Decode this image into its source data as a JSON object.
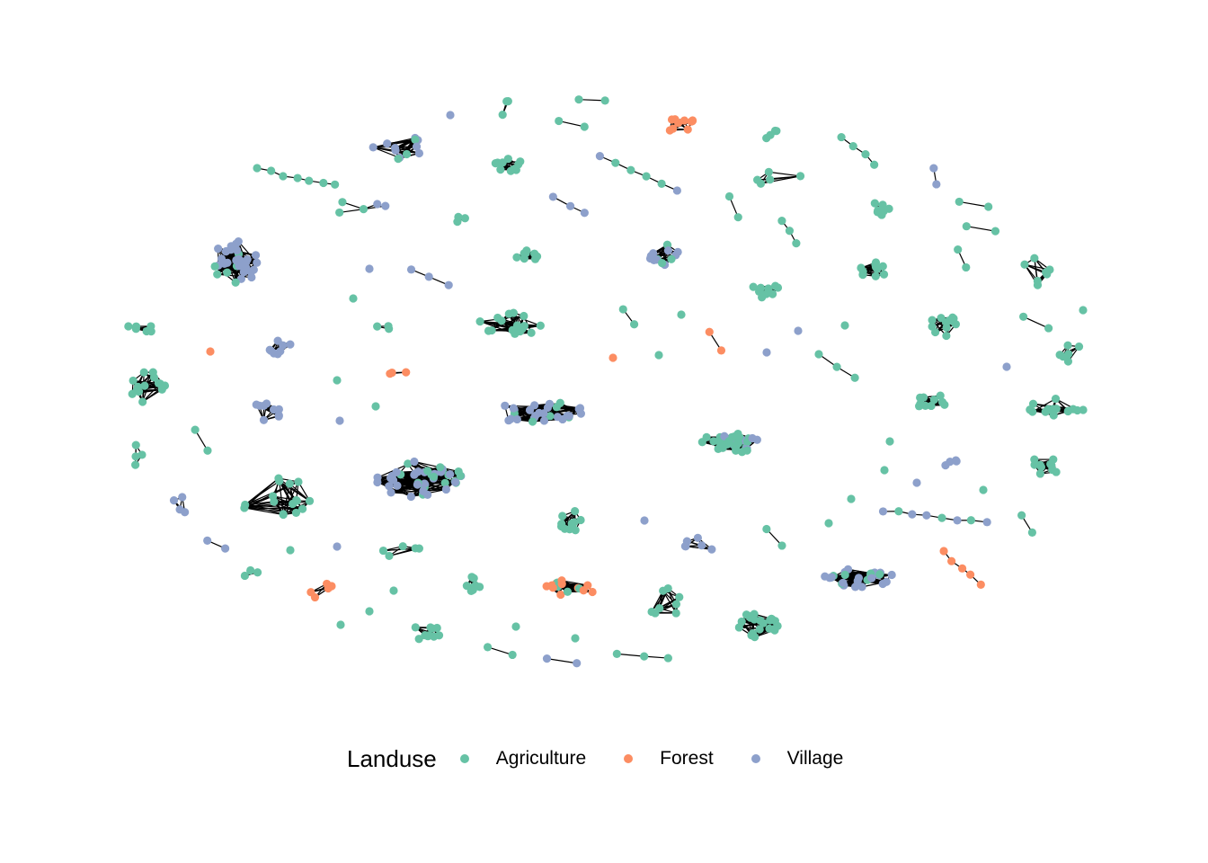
{
  "legend": {
    "title": "Landuse",
    "items": [
      {
        "label": "Agriculture",
        "color": "#66C2A5"
      },
      {
        "label": "Forest",
        "color": "#FC8D62"
      },
      {
        "label": "Village",
        "color": "#8DA0CB"
      }
    ]
  },
  "node_counts": {
    "Agriculture": 338,
    "Forest": 30,
    "Village": 124
  }
}
